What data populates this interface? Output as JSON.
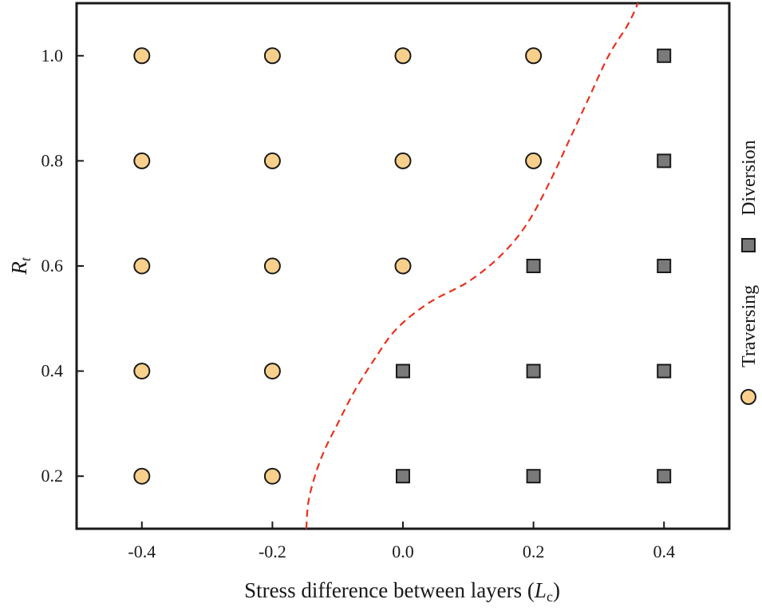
{
  "chart_data": {
    "type": "scatter",
    "xlabel_main": "Stress difference between layers (",
    "xlabel_var": "L",
    "xlabel_sub": "c",
    "xlabel_close": ")",
    "ylabel_var": "R",
    "ylabel_sub": "t",
    "xlim": [
      -0.5,
      0.5
    ],
    "ylim": [
      0.1,
      1.1
    ],
    "xticks": [
      -0.4,
      -0.2,
      0.0,
      0.2,
      0.4
    ],
    "xtick_labels": [
      "-0.4",
      "-0.2",
      "0.0",
      "0.2",
      "0.4"
    ],
    "yticks": [
      0.2,
      0.4,
      0.6,
      0.8,
      1.0
    ],
    "ytick_labels": [
      "0.2",
      "0.4",
      "0.6",
      "0.8",
      "1.0"
    ],
    "series": [
      {
        "name": "Traversing",
        "marker": "circle",
        "color": "#F8D08C",
        "points": [
          {
            "x": -0.4,
            "y": 0.2
          },
          {
            "x": -0.4,
            "y": 0.4
          },
          {
            "x": -0.4,
            "y": 0.6
          },
          {
            "x": -0.4,
            "y": 0.8
          },
          {
            "x": -0.4,
            "y": 1.0
          },
          {
            "x": -0.2,
            "y": 0.2
          },
          {
            "x": -0.2,
            "y": 0.4
          },
          {
            "x": -0.2,
            "y": 0.6
          },
          {
            "x": -0.2,
            "y": 0.8
          },
          {
            "x": -0.2,
            "y": 1.0
          },
          {
            "x": 0.0,
            "y": 0.6
          },
          {
            "x": 0.0,
            "y": 0.8
          },
          {
            "x": 0.0,
            "y": 1.0
          },
          {
            "x": 0.2,
            "y": 0.8
          },
          {
            "x": 0.2,
            "y": 1.0
          }
        ]
      },
      {
        "name": "Diversion",
        "marker": "square",
        "color": "#7A7A7A",
        "points": [
          {
            "x": 0.0,
            "y": 0.2
          },
          {
            "x": 0.0,
            "y": 0.4
          },
          {
            "x": 0.2,
            "y": 0.2
          },
          {
            "x": 0.2,
            "y": 0.4
          },
          {
            "x": 0.2,
            "y": 0.6
          },
          {
            "x": 0.4,
            "y": 0.2
          },
          {
            "x": 0.4,
            "y": 0.4
          },
          {
            "x": 0.4,
            "y": 0.6
          },
          {
            "x": 0.4,
            "y": 0.8
          },
          {
            "x": 0.4,
            "y": 1.0
          }
        ]
      }
    ],
    "boundary": {
      "name": "boundary",
      "style": "dashed",
      "color": "#E8321E",
      "points": [
        {
          "x": -0.148,
          "y": 0.1
        },
        {
          "x": -0.145,
          "y": 0.15
        },
        {
          "x": -0.135,
          "y": 0.2
        },
        {
          "x": -0.12,
          "y": 0.25
        },
        {
          "x": -0.1,
          "y": 0.3
        },
        {
          "x": -0.075,
          "y": 0.36
        },
        {
          "x": -0.045,
          "y": 0.42
        },
        {
          "x": -0.01,
          "y": 0.48
        },
        {
          "x": 0.04,
          "y": 0.53
        },
        {
          "x": 0.1,
          "y": 0.57
        },
        {
          "x": 0.15,
          "y": 0.62
        },
        {
          "x": 0.19,
          "y": 0.68
        },
        {
          "x": 0.225,
          "y": 0.76
        },
        {
          "x": 0.255,
          "y": 0.84
        },
        {
          "x": 0.285,
          "y": 0.92
        },
        {
          "x": 0.315,
          "y": 1.0
        },
        {
          "x": 0.345,
          "y": 1.06
        },
        {
          "x": 0.36,
          "y": 1.1
        }
      ]
    },
    "legend": {
      "placement": "right, vertical",
      "entries": [
        {
          "label": "Traversing",
          "marker": "circle",
          "color": "#F8D08C"
        },
        {
          "label": "Diversion",
          "marker": "square",
          "color": "#7A7A7A"
        }
      ]
    }
  }
}
